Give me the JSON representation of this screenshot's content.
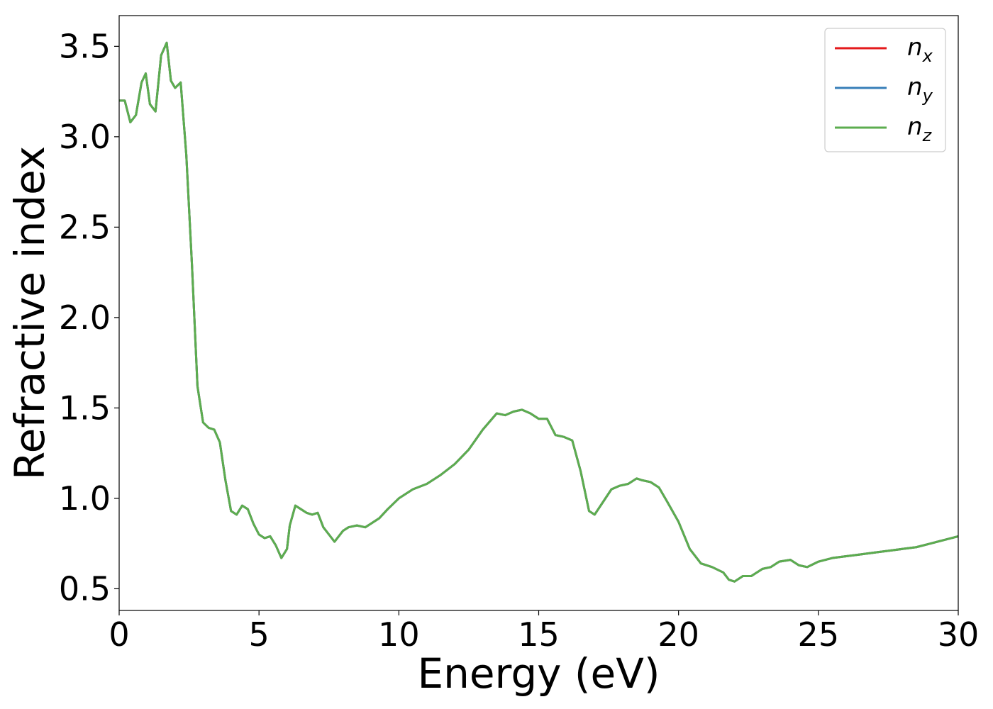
{
  "chart_data": {
    "type": "line",
    "xlabel": "Energy (eV)",
    "ylabel": "Refractive index",
    "xlim": [
      0,
      30
    ],
    "ylim": [
      0.38,
      3.67
    ],
    "xticks": [
      0,
      5,
      10,
      15,
      20,
      25,
      30
    ],
    "xtick_labels": [
      "0",
      "5",
      "10",
      "15",
      "20",
      "25",
      "30"
    ],
    "yticks": [
      0.5,
      1.0,
      1.5,
      2.0,
      2.5,
      3.0,
      3.5
    ],
    "ytick_labels": [
      "0.5",
      "1.0",
      "1.5",
      "2.0",
      "2.5",
      "3.0",
      "3.5"
    ],
    "grid": false,
    "legend_position": "top-right",
    "x": [
      0,
      0.2,
      0.4,
      0.6,
      0.8,
      0.95,
      1.1,
      1.3,
      1.5,
      1.7,
      1.85,
      2.0,
      2.2,
      2.4,
      2.6,
      2.8,
      3.0,
      3.2,
      3.4,
      3.6,
      3.8,
      4.0,
      4.2,
      4.4,
      4.6,
      4.8,
      5.0,
      5.2,
      5.4,
      5.6,
      5.8,
      6.0,
      6.1,
      6.3,
      6.5,
      6.7,
      6.9,
      7.1,
      7.3,
      7.5,
      7.7,
      8.0,
      8.2,
      8.5,
      8.8,
      9.0,
      9.3,
      9.6,
      10.0,
      10.5,
      11.0,
      11.5,
      12.0,
      12.5,
      13.0,
      13.5,
      13.8,
      14.1,
      14.4,
      14.7,
      15.0,
      15.3,
      15.6,
      15.9,
      16.2,
      16.5,
      16.8,
      17.0,
      17.3,
      17.6,
      17.9,
      18.2,
      18.5,
      18.7,
      19.0,
      19.3,
      19.6,
      20.0,
      20.4,
      20.8,
      21.2,
      21.6,
      21.8,
      22.0,
      22.3,
      22.6,
      23.0,
      23.3,
      23.6,
      24.0,
      24.3,
      24.6,
      25.0,
      25.5,
      26.0,
      26.5,
      27.0,
      27.5,
      28.0,
      28.5,
      29.0,
      29.5,
      30.0
    ],
    "series": [
      {
        "name": "n_x",
        "label_main": "n",
        "label_sub": "x",
        "color": "#e41a1c",
        "y": [
          3.2,
          3.2,
          3.08,
          3.12,
          3.3,
          3.35,
          3.18,
          3.14,
          3.45,
          3.52,
          3.31,
          3.27,
          3.3,
          2.9,
          2.3,
          1.62,
          1.42,
          1.39,
          1.38,
          1.31,
          1.1,
          0.93,
          0.91,
          0.96,
          0.94,
          0.86,
          0.8,
          0.78,
          0.79,
          0.74,
          0.67,
          0.72,
          0.85,
          0.96,
          0.94,
          0.92,
          0.91,
          0.92,
          0.84,
          0.8,
          0.76,
          0.82,
          0.84,
          0.85,
          0.84,
          0.86,
          0.89,
          0.94,
          1.0,
          1.05,
          1.08,
          1.13,
          1.19,
          1.27,
          1.38,
          1.47,
          1.46,
          1.48,
          1.49,
          1.47,
          1.44,
          1.44,
          1.35,
          1.34,
          1.32,
          1.15,
          0.93,
          0.91,
          0.98,
          1.05,
          1.07,
          1.08,
          1.11,
          1.1,
          1.09,
          1.06,
          0.98,
          0.87,
          0.72,
          0.64,
          0.62,
          0.59,
          0.55,
          0.54,
          0.57,
          0.57,
          0.61,
          0.62,
          0.65,
          0.66,
          0.63,
          0.62,
          0.65,
          0.67,
          0.68,
          0.69,
          0.7,
          0.71,
          0.72,
          0.73,
          0.75,
          0.77,
          0.79
        ]
      },
      {
        "name": "n_y",
        "label_main": "n",
        "label_sub": "y",
        "color": "#377eb8",
        "y": [
          3.2,
          3.2,
          3.08,
          3.12,
          3.3,
          3.35,
          3.18,
          3.14,
          3.45,
          3.52,
          3.31,
          3.27,
          3.3,
          2.9,
          2.3,
          1.62,
          1.42,
          1.39,
          1.38,
          1.31,
          1.1,
          0.93,
          0.91,
          0.96,
          0.94,
          0.86,
          0.8,
          0.78,
          0.79,
          0.74,
          0.67,
          0.72,
          0.85,
          0.96,
          0.94,
          0.92,
          0.91,
          0.92,
          0.84,
          0.8,
          0.76,
          0.82,
          0.84,
          0.85,
          0.84,
          0.86,
          0.89,
          0.94,
          1.0,
          1.05,
          1.08,
          1.13,
          1.19,
          1.27,
          1.38,
          1.47,
          1.46,
          1.48,
          1.49,
          1.47,
          1.44,
          1.44,
          1.35,
          1.34,
          1.32,
          1.15,
          0.93,
          0.91,
          0.98,
          1.05,
          1.07,
          1.08,
          1.11,
          1.1,
          1.09,
          1.06,
          0.98,
          0.87,
          0.72,
          0.64,
          0.62,
          0.59,
          0.55,
          0.54,
          0.57,
          0.57,
          0.61,
          0.62,
          0.65,
          0.66,
          0.63,
          0.62,
          0.65,
          0.67,
          0.68,
          0.69,
          0.7,
          0.71,
          0.72,
          0.73,
          0.75,
          0.77,
          0.79
        ]
      },
      {
        "name": "n_z",
        "label_main": "n",
        "label_sub": "z",
        "color": "#5cad4f",
        "y": [
          3.2,
          3.2,
          3.08,
          3.12,
          3.3,
          3.35,
          3.18,
          3.14,
          3.45,
          3.52,
          3.31,
          3.27,
          3.3,
          2.9,
          2.3,
          1.62,
          1.42,
          1.39,
          1.38,
          1.31,
          1.1,
          0.93,
          0.91,
          0.96,
          0.94,
          0.86,
          0.8,
          0.78,
          0.79,
          0.74,
          0.67,
          0.72,
          0.85,
          0.96,
          0.94,
          0.92,
          0.91,
          0.92,
          0.84,
          0.8,
          0.76,
          0.82,
          0.84,
          0.85,
          0.84,
          0.86,
          0.89,
          0.94,
          1.0,
          1.05,
          1.08,
          1.13,
          1.19,
          1.27,
          1.38,
          1.47,
          1.46,
          1.48,
          1.49,
          1.47,
          1.44,
          1.44,
          1.35,
          1.34,
          1.32,
          1.15,
          0.93,
          0.91,
          0.98,
          1.05,
          1.07,
          1.08,
          1.11,
          1.1,
          1.09,
          1.06,
          0.98,
          0.87,
          0.72,
          0.64,
          0.62,
          0.59,
          0.55,
          0.54,
          0.57,
          0.57,
          0.61,
          0.62,
          0.65,
          0.66,
          0.63,
          0.62,
          0.65,
          0.67,
          0.68,
          0.69,
          0.7,
          0.71,
          0.72,
          0.73,
          0.75,
          0.77,
          0.79
        ]
      }
    ]
  }
}
